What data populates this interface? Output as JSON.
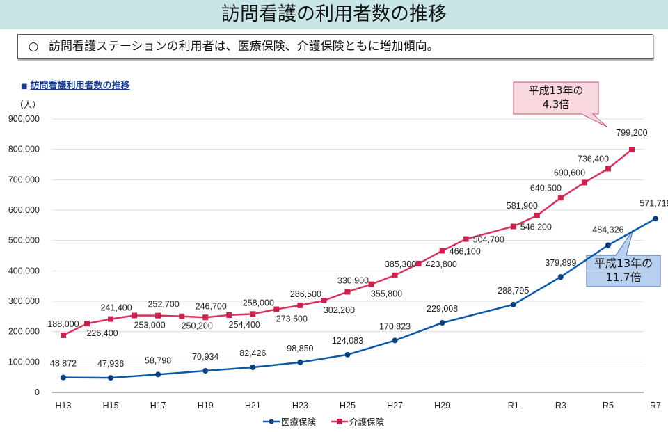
{
  "header": {
    "title": "訪問看護の利用者数の推移"
  },
  "summary": {
    "bullet": "○",
    "text": "訪問看護ステーションの利用者は、医療保険、介護保険ともに増加傾向。"
  },
  "chart_data": {
    "type": "line",
    "title": "訪問看護利用者数の推移",
    "ylabel": "（人）",
    "ylim": [
      0,
      900000
    ],
    "yticks": [
      "0",
      "100,000",
      "200,000",
      "300,000",
      "400,000",
      "500,000",
      "600,000",
      "700,000",
      "800,000",
      "900,000"
    ],
    "xtick_labels": [
      "H13",
      "H15",
      "H17",
      "H19",
      "H21",
      "H23",
      "H25",
      "H27",
      "H29",
      "R1",
      "R3",
      "R5",
      "R7"
    ],
    "grid": "horizontal",
    "legend_position": "bottom",
    "series": [
      {
        "name": "医療保険",
        "color": "#0a5aa8",
        "marker": "circle",
        "x": [
          "H13",
          "H15",
          "H17",
          "H19",
          "H21",
          "H23",
          "H25",
          "H27",
          "H29",
          "R1",
          "R3",
          "R5",
          "R7"
        ],
        "values": [
          48872,
          47936,
          58798,
          70934,
          82426,
          98850,
          124083,
          170823,
          229008,
          288795,
          379899,
          484326,
          571719
        ],
        "labels": [
          "48,872",
          "47,936",
          "58,798",
          "70,934",
          "82,426",
          "98,850",
          "124,083",
          "170,823",
          "229,008",
          "288,795",
          "379,899",
          "484,326",
          "571,719"
        ]
      },
      {
        "name": "介護保険",
        "color": "#d8355e",
        "marker": "square",
        "x": [
          "H13",
          "H14",
          "H15",
          "H16",
          "H17",
          "H18",
          "H19",
          "H20",
          "H21",
          "H22",
          "H23",
          "H24",
          "H25",
          "H26",
          "H27",
          "H28",
          "H29",
          "H30",
          "R1",
          "R2",
          "R3",
          "R4",
          "R5",
          "R6"
        ],
        "values": [
          188000,
          226400,
          241400,
          253000,
          252700,
          250200,
          246700,
          254400,
          258000,
          273500,
          286500,
          302200,
          330900,
          355800,
          385300,
          423800,
          466100,
          504700,
          546200,
          581900,
          640500,
          690600,
          736400,
          799200
        ],
        "labels": [
          "188,000",
          "226,400",
          "241,400",
          "253,000",
          "252,700",
          "250,200",
          "246,700",
          "254,400",
          "258,000",
          "273,500",
          "286,500",
          "302,200",
          "330,900",
          "355,800",
          "385,300",
          "423,800",
          "466,100",
          "504,700",
          "546,200",
          "581,900",
          "640,500",
          "690,600",
          "736,400",
          "799,200"
        ]
      }
    ],
    "annotations": [
      {
        "series": "介護保険",
        "line1": "平成13年の",
        "line2": "4.3倍",
        "fill": "#f8d7de",
        "border": "#c0506a"
      },
      {
        "series": "医療保険",
        "line1": "平成13年の",
        "line2": "11.7倍",
        "fill": "#b8d0f0",
        "border": "#4a6ea8"
      }
    ]
  }
}
